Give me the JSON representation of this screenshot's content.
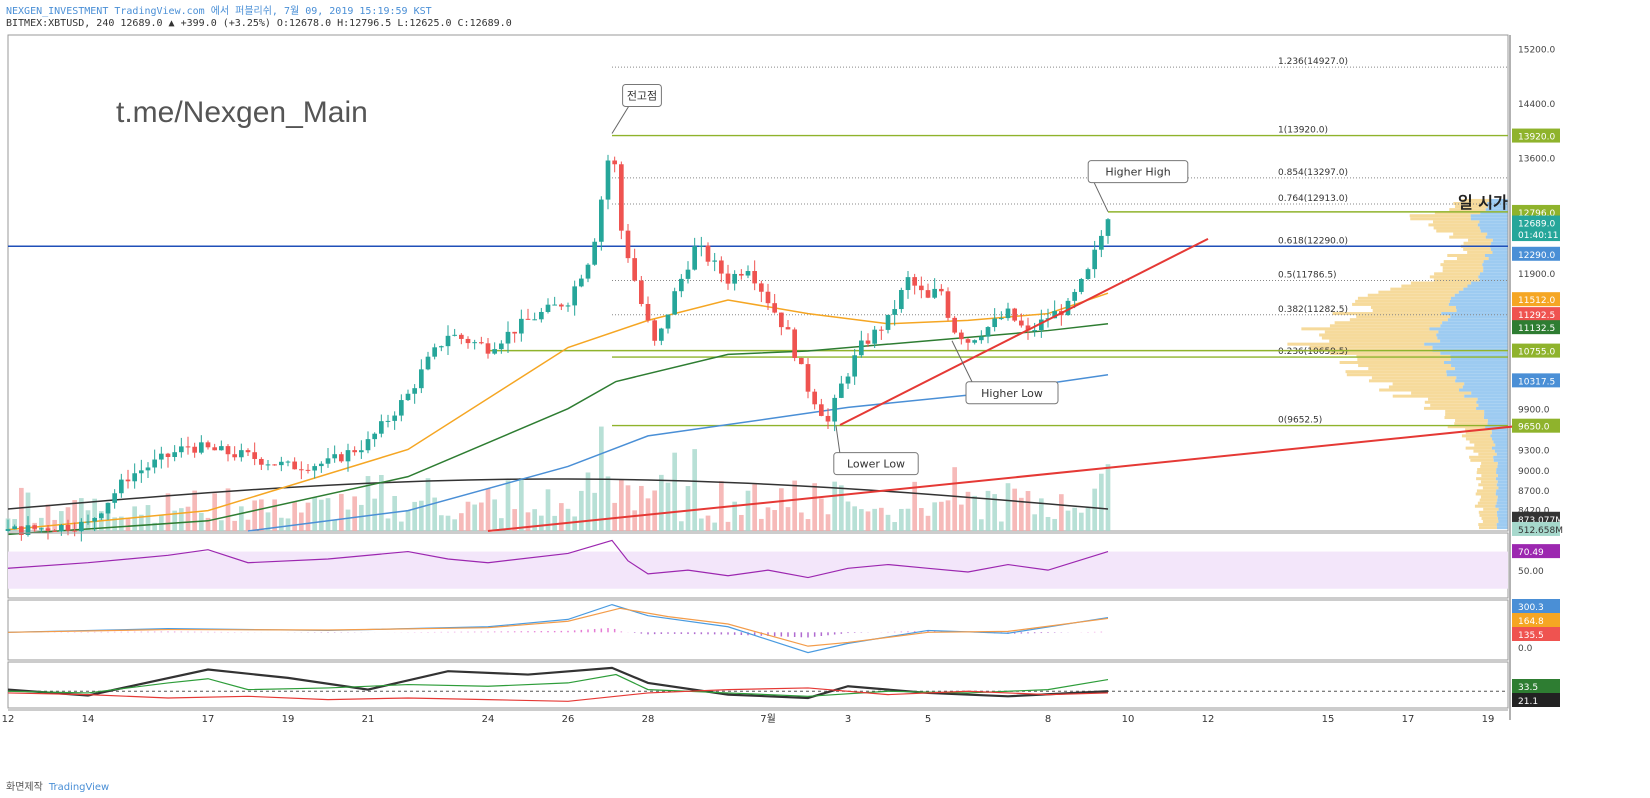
{
  "header": {
    "line1": "NEXGEN_INVESTMENT TradingView.com 에서 퍼블리쉬, 7월 09, 2019 15:19:59 KST",
    "line2": "BITMEX:XBTUSD, 240 12689.0 ▲ +399.0 (+3.25%) O:12678.0 H:12796.5 L:12625.0 C:12689.0"
  },
  "watermark": "t.me/Nexgen_Main",
  "footer": {
    "left": "화면제작",
    "brand": "TradingView"
  },
  "colors": {
    "up": "#26a69a",
    "down": "#ef5350",
    "ema_orange": "#f5a623",
    "ema_green": "#2e7d32",
    "ema_blue": "#4a8fd6",
    "fib": "#8fb32c",
    "trend": "#e53935",
    "rsi": "#9c27b0"
  },
  "chart_data": {
    "type": "candlestick",
    "symbol": "BITMEX:XBTUSD",
    "timeframe": "240",
    "y_range": [
      8100,
      15400
    ],
    "x_range_days": [
      0,
      37.5
    ],
    "x_ticks": [
      {
        "d": 0,
        "label": "12"
      },
      {
        "d": 2,
        "label": "14"
      },
      {
        "d": 5,
        "label": "17"
      },
      {
        "d": 7,
        "label": "19"
      },
      {
        "d": 9,
        "label": "21"
      },
      {
        "d": 12,
        "label": "24"
      },
      {
        "d": 14,
        "label": "26"
      },
      {
        "d": 16,
        "label": "28"
      },
      {
        "d": 19,
        "label": "7월"
      },
      {
        "d": 21,
        "label": "3"
      },
      {
        "d": 23,
        "label": "5"
      },
      {
        "d": 26,
        "label": "8"
      },
      {
        "d": 28,
        "label": "10"
      },
      {
        "d": 30,
        "label": "12"
      },
      {
        "d": 33,
        "label": "15"
      },
      {
        "d": 35,
        "label": "17"
      },
      {
        "d": 37,
        "label": "19"
      }
    ],
    "y_ticks": [
      "15200.0",
      "14400.0",
      "13600.0",
      "11900.0",
      "9900.0",
      "9300.0",
      "9000.0",
      "8700.0",
      "8420.0"
    ],
    "price_anchors": [
      [
        0,
        8100
      ],
      [
        1,
        8150
      ],
      [
        2,
        8200
      ],
      [
        3,
        8900
      ],
      [
        4.5,
        9350
      ],
      [
        6,
        9200
      ],
      [
        7,
        9050
      ],
      [
        8,
        9100
      ],
      [
        9,
        9400
      ],
      [
        10,
        10100
      ],
      [
        10.5,
        10600
      ],
      [
        11,
        11000
      ],
      [
        12,
        10800
      ],
      [
        12.5,
        11000
      ],
      [
        13,
        11200
      ],
      [
        14,
        11500
      ],
      [
        14.6,
        12200
      ],
      [
        15.1,
        13900
      ],
      [
        15.3,
        12600
      ],
      [
        15.8,
        11500
      ],
      [
        16.2,
        10800
      ],
      [
        16.6,
        11500
      ],
      [
        17.2,
        12300
      ],
      [
        18,
        11800
      ],
      [
        18.5,
        12000
      ],
      [
        19,
        11500
      ],
      [
        19.5,
        11000
      ],
      [
        20,
        10200
      ],
      [
        20.5,
        9700
      ],
      [
        20.8,
        10200
      ],
      [
        21.3,
        10800
      ],
      [
        22,
        11200
      ],
      [
        22.5,
        11800
      ],
      [
        23,
        11500
      ],
      [
        23.3,
        11700
      ],
      [
        23.6,
        11100
      ],
      [
        24,
        10900
      ],
      [
        24.5,
        11100
      ],
      [
        25,
        11300
      ],
      [
        25.5,
        11000
      ],
      [
        26,
        11250
      ],
      [
        26.5,
        11400
      ],
      [
        27,
        11900
      ],
      [
        27.3,
        12400
      ],
      [
        27.5,
        12689
      ]
    ],
    "ema_fast": [
      [
        0,
        8120
      ],
      [
        5,
        8400
      ],
      [
        10,
        9300
      ],
      [
        14,
        10800
      ],
      [
        16,
        11200
      ],
      [
        18,
        11500
      ],
      [
        20,
        11300
      ],
      [
        22,
        11150
      ],
      [
        24,
        11200
      ],
      [
        26,
        11300
      ],
      [
        27.5,
        11600
      ]
    ],
    "ema_mid": [
      [
        0,
        8050
      ],
      [
        5,
        8250
      ],
      [
        10,
        8900
      ],
      [
        14,
        9900
      ],
      [
        15.2,
        10300
      ],
      [
        18,
        10700
      ],
      [
        20,
        10750
      ],
      [
        22,
        10850
      ],
      [
        24,
        10950
      ],
      [
        26,
        11050
      ],
      [
        27.5,
        11150
      ]
    ],
    "ema_slow": [
      [
        6,
        8100
      ],
      [
        10,
        8400
      ],
      [
        14,
        9050
      ],
      [
        16,
        9500
      ],
      [
        19,
        9750
      ],
      [
        21,
        9920
      ],
      [
        24,
        10100
      ],
      [
        27.5,
        10400
      ]
    ],
    "fib_levels": [
      {
        "label": "1.236(14927.0)",
        "price": 14927,
        "style": "dotted"
      },
      {
        "label": "1(13920.0)",
        "price": 13920,
        "style": "solid"
      },
      {
        "label": "0.854(13297.0)",
        "price": 13297,
        "style": "dotted"
      },
      {
        "label": "0.764(12913.0)",
        "price": 12913,
        "style": "dotted"
      },
      {
        "label": "0.618(12290.0)",
        "price": 12290,
        "style": "dotted"
      },
      {
        "label": "0.5(11786.5)",
        "price": 11786.5,
        "style": "dotted"
      },
      {
        "label": "0.382(11282.5)",
        "price": 11282.5,
        "style": "dotted"
      },
      {
        "label": "0.236(10659.5)",
        "price": 10659.5,
        "style": "solid"
      },
      {
        "label": "0(9652.5)",
        "price": 9652.5,
        "style": "solid"
      }
    ],
    "horizontal_lines": [
      {
        "price": 12290,
        "color": "#1f4fb8",
        "from_day": 0
      },
      {
        "price": 12796,
        "color": "#8fb32c",
        "from_day": 27.5
      },
      {
        "price": 10755,
        "color": "#8fb32c",
        "from_day": 12
      }
    ],
    "trend_lines": [
      {
        "from": [
          20.8,
          9660
        ],
        "to": [
          30,
          12400
        ]
      },
      {
        "from": [
          12,
          8100
        ],
        "to": [
          38,
          9660
        ]
      }
    ],
    "annotations": [
      {
        "text": "전고점",
        "day": 15.1,
        "price": 13950,
        "box_offset": [
          30,
          -38
        ]
      },
      {
        "text": "Higher High",
        "day": 27.5,
        "price": 12800,
        "box_offset": [
          30,
          -40
        ]
      },
      {
        "text": "Higher Low",
        "day": 23.6,
        "price": 10900,
        "box_offset": [
          60,
          52
        ]
      },
      {
        "text": "Lower Low",
        "day": 20.7,
        "price": 9650,
        "box_offset": [
          40,
          38
        ]
      }
    ],
    "price_badges": [
      {
        "text": "15200.0",
        "price": 15200,
        "bg": "",
        "fg": "#444"
      },
      {
        "text": "14400.0",
        "price": 14400,
        "bg": "",
        "fg": "#444"
      },
      {
        "text": "13920.0",
        "price": 13920,
        "bg": "#8fb32c",
        "fg": "#fff"
      },
      {
        "text": "13600.0",
        "price": 13600,
        "bg": "",
        "fg": "#444"
      },
      {
        "text": "12796.0",
        "price": 12796,
        "bg": "#8fb32c",
        "fg": "#fff"
      },
      {
        "text": "12689.0",
        "price": 12640,
        "bg": "#26a69a",
        "fg": "#fff"
      },
      {
        "text": "01:40:11",
        "price": 12470,
        "bg": "#26a69a",
        "fg": "#fff"
      },
      {
        "text": "12290.0",
        "price": 12180,
        "bg": "#4a8fd6",
        "fg": "#fff"
      },
      {
        "text": "11900.0",
        "price": 11900,
        "bg": "",
        "fg": "#444"
      },
      {
        "text": "11512.0",
        "price": 11512,
        "bg": "#f5a623",
        "fg": "#fff"
      },
      {
        "text": "11292.5",
        "price": 11292,
        "bg": "#ef5350",
        "fg": "#fff"
      },
      {
        "text": "11132.5",
        "price": 11100,
        "bg": "#2e7d32",
        "fg": "#fff"
      },
      {
        "text": "10755.0",
        "price": 10755,
        "bg": "#8fb32c",
        "fg": "#fff"
      },
      {
        "text": "10317.5",
        "price": 10317,
        "bg": "#4a8fd6",
        "fg": "#fff"
      },
      {
        "text": "9900.0",
        "price": 9900,
        "bg": "",
        "fg": "#444"
      },
      {
        "text": "9650.0",
        "price": 9650,
        "bg": "#8fb32c",
        "fg": "#fff"
      },
      {
        "text": "9300.0",
        "price": 9300,
        "bg": "",
        "fg": "#444"
      },
      {
        "text": "9000.0",
        "price": 9000,
        "bg": "",
        "fg": "#444"
      },
      {
        "text": "8700.0",
        "price": 8700,
        "bg": "",
        "fg": "#444"
      },
      {
        "text": "8420.0",
        "price": 8420,
        "bg": "",
        "fg": "#444"
      },
      {
        "text": "873.077M",
        "price": 8280,
        "bg": "#333",
        "fg": "#fff"
      },
      {
        "text": "512.658M",
        "price": 8130,
        "bg": "#a6d8cc",
        "fg": "#333"
      }
    ],
    "daily_label": "일 시가",
    "rsi": {
      "value_label": "70.49",
      "axis_label": "50.00",
      "last": 70.49,
      "points": [
        [
          0,
          52
        ],
        [
          2,
          58
        ],
        [
          4,
          66
        ],
        [
          5,
          72
        ],
        [
          6,
          58
        ],
        [
          8,
          62
        ],
        [
          10,
          70
        ],
        [
          11,
          62
        ],
        [
          12,
          58
        ],
        [
          14,
          68
        ],
        [
          15.1,
          82
        ],
        [
          15.5,
          60
        ],
        [
          16,
          46
        ],
        [
          17,
          50
        ],
        [
          18,
          44
        ],
        [
          19,
          50
        ],
        [
          20,
          42
        ],
        [
          21,
          52
        ],
        [
          22,
          56
        ],
        [
          23,
          52
        ],
        [
          24,
          48
        ],
        [
          25,
          56
        ],
        [
          26,
          50
        ],
        [
          27.5,
          70
        ]
      ]
    },
    "macd": {
      "labels": [
        "300.3",
        "164.8",
        "135.5",
        "0.0"
      ],
      "macd": [
        [
          0,
          0
        ],
        [
          4,
          40
        ],
        [
          8,
          20
        ],
        [
          12,
          60
        ],
        [
          14,
          140
        ],
        [
          15.1,
          300
        ],
        [
          16,
          180
        ],
        [
          18,
          60
        ],
        [
          20,
          -220
        ],
        [
          21,
          -120
        ],
        [
          23,
          20
        ],
        [
          25,
          -10
        ],
        [
          27.5,
          160
        ]
      ],
      "signal": [
        [
          0,
          0
        ],
        [
          4,
          30
        ],
        [
          8,
          25
        ],
        [
          12,
          50
        ],
        [
          14,
          120
        ],
        [
          15.3,
          260
        ],
        [
          16.5,
          170
        ],
        [
          18,
          90
        ],
        [
          20,
          -150
        ],
        [
          21,
          -110
        ],
        [
          23,
          0
        ],
        [
          25,
          10
        ],
        [
          27.5,
          150
        ]
      ]
    },
    "dmi": {
      "labels": [
        "33.5",
        "21.1"
      ],
      "dashed_level": 20,
      "adx": [
        [
          0,
          22
        ],
        [
          2,
          15
        ],
        [
          5,
          46
        ],
        [
          7,
          36
        ],
        [
          9,
          22
        ],
        [
          11,
          44
        ],
        [
          13,
          40
        ],
        [
          15.1,
          48
        ],
        [
          16,
          30
        ],
        [
          18,
          16
        ],
        [
          20,
          12
        ],
        [
          21,
          26
        ],
        [
          23,
          18
        ],
        [
          25,
          14
        ],
        [
          27.5,
          20
        ]
      ],
      "plus": [
        [
          0,
          20
        ],
        [
          2,
          18
        ],
        [
          4,
          30
        ],
        [
          5,
          35
        ],
        [
          6,
          22
        ],
        [
          8,
          24
        ],
        [
          10,
          28
        ],
        [
          12,
          26
        ],
        [
          14,
          30
        ],
        [
          15.2,
          40
        ],
        [
          16,
          22
        ],
        [
          18,
          18
        ],
        [
          20,
          14
        ],
        [
          22,
          20
        ],
        [
          24,
          18
        ],
        [
          26,
          22
        ],
        [
          27.5,
          34
        ]
      ],
      "minus": [
        [
          0,
          18
        ],
        [
          2,
          16
        ],
        [
          4,
          12
        ],
        [
          6,
          14
        ],
        [
          8,
          10
        ],
        [
          10,
          12
        ],
        [
          12,
          10
        ],
        [
          14,
          8
        ],
        [
          16,
          18
        ],
        [
          18,
          22
        ],
        [
          20,
          24
        ],
        [
          22,
          16
        ],
        [
          24,
          20
        ],
        [
          26,
          16
        ],
        [
          27.5,
          18
        ]
      ]
    }
  }
}
